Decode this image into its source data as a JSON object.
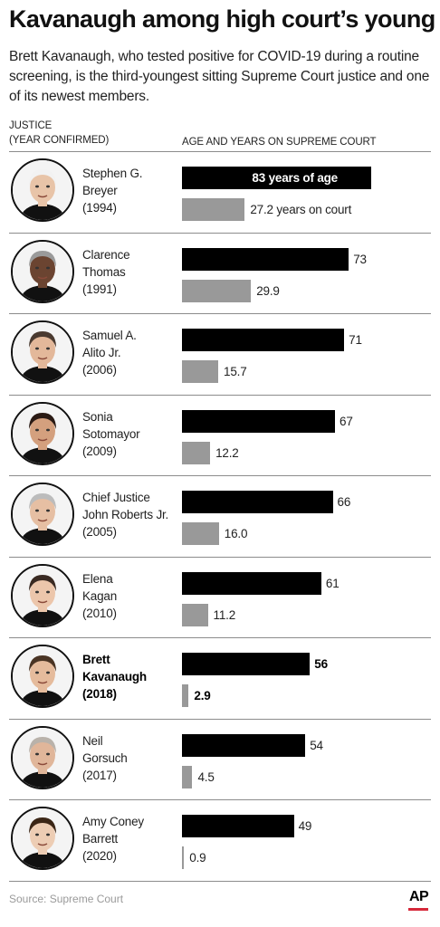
{
  "title": "Kavanaugh among high court’s young",
  "subtitle": "Brett Kavanaugh, who tested positive for COVID-19 during a routine screening, is the third-youngest sitting Supreme Court justice and one of its newest members.",
  "header_left": [
    "JUSTICE",
    "(YEAR CONFIRMED)"
  ],
  "header_right": "AGE AND YEARS ON SUPREME COURT",
  "source": "Source: Supreme Court",
  "credit": "AP",
  "colors": {
    "age_bar": "#000000",
    "court_bar": "#999999",
    "ap_accent": "#d6283a"
  },
  "chart_data": {
    "type": "bar",
    "title": "Kavanaugh among high court’s young",
    "categories": [
      "Stephen G. Breyer (1994)",
      "Clarence Thomas (1991)",
      "Samuel A. Alito Jr. (2006)",
      "Sonia Sotomayor (2009)",
      "Chief Justice John Roberts Jr. (2005)",
      "Elena Kagan (2010)",
      "Brett Kavanaugh (2018)",
      "Neil Gorsuch (2017)",
      "Amy Coney Barrett (2020)"
    ],
    "series": [
      {
        "name": "years of age",
        "values": [
          83,
          73,
          71,
          67,
          66,
          61,
          56,
          54,
          49
        ]
      },
      {
        "name": "years on court",
        "values": [
          27.2,
          29.9,
          15.7,
          12.2,
          16.0,
          11.2,
          2.9,
          4.5,
          0.9
        ]
      }
    ],
    "xlim": [
      0,
      86
    ],
    "grid": false,
    "legend": "none",
    "highlight": "Brett Kavanaugh (2018)"
  },
  "justices": [
    {
      "name_lines": [
        "Stephen G.",
        "Breyer",
        "(1994)"
      ],
      "age_label": "83 years of age",
      "court_label": "27.2 years on court"
    },
    {
      "name_lines": [
        "Clarence",
        "Thomas",
        "(1991)"
      ],
      "age_label": "73",
      "court_label": "29.9"
    },
    {
      "name_lines": [
        "Samuel A.",
        " Alito Jr.",
        "(2006)"
      ],
      "age_label": "71",
      "court_label": "15.7"
    },
    {
      "name_lines": [
        "Sonia",
        "Sotomayor",
        "(2009)"
      ],
      "age_label": "67",
      "court_label": "12.2"
    },
    {
      "name_lines": [
        "Chief Justice",
        "John Roberts Jr.",
        "(2005)"
      ],
      "age_label": "66",
      "court_label": "16.0"
    },
    {
      "name_lines": [
        "Elena",
        "Kagan",
        "(2010)"
      ],
      "age_label": "61",
      "court_label": "11.2"
    },
    {
      "name_lines": [
        "Brett",
        "Kavanaugh",
        "(2018)"
      ],
      "age_label": "56",
      "court_label": "2.9"
    },
    {
      "name_lines": [
        "Neil",
        "Gorsuch",
        "(2017)"
      ],
      "age_label": "54",
      "court_label": "4.5"
    },
    {
      "name_lines": [
        "Amy Coney",
        "Barrett",
        "(2020)"
      ],
      "age_label": "49",
      "court_label": "0.9"
    }
  ]
}
